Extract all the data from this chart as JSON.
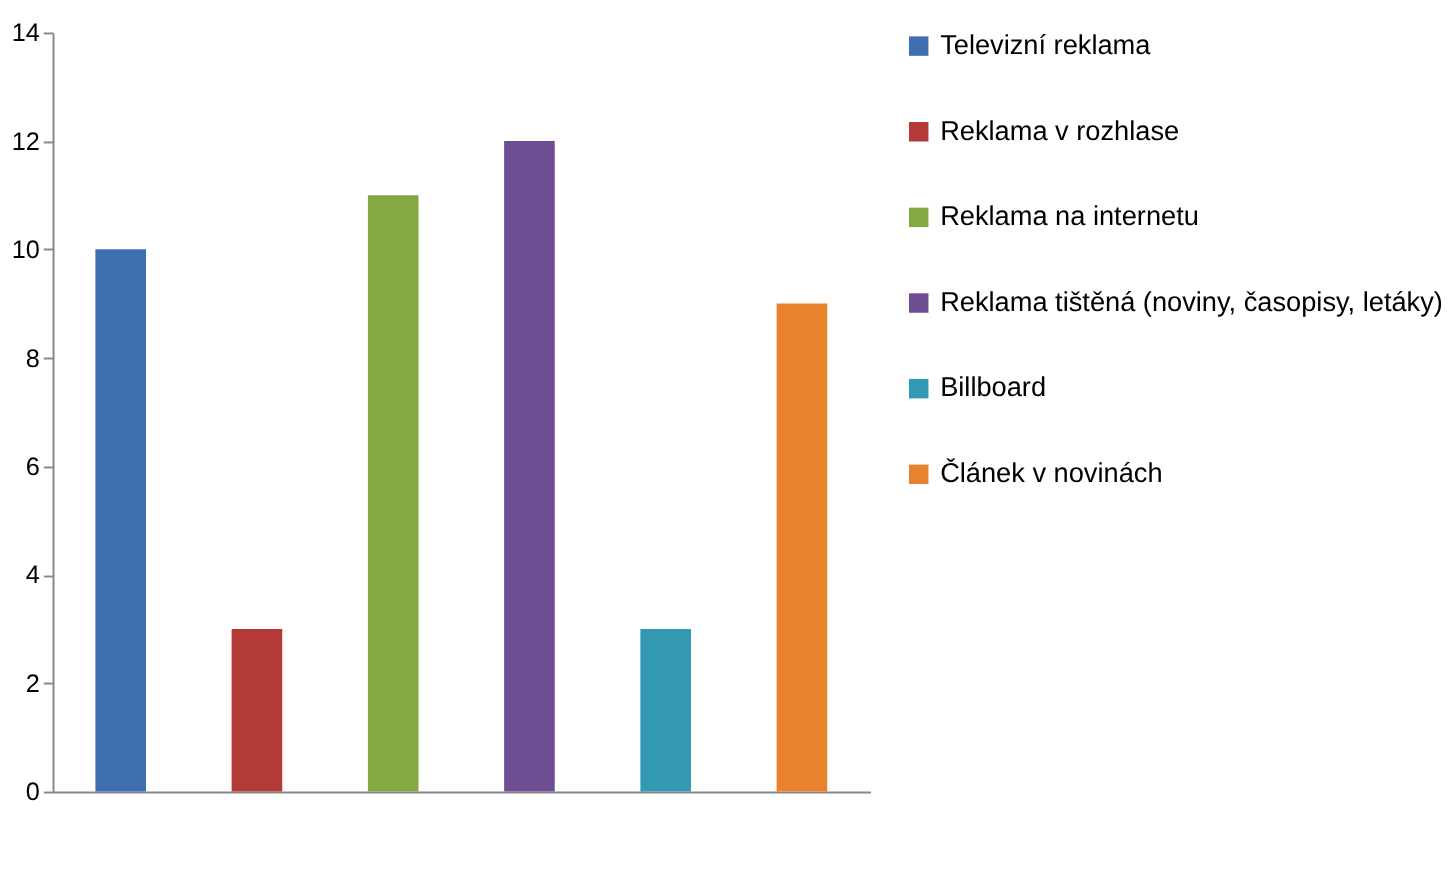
{
  "chart_data": {
    "type": "bar",
    "categories": [
      null,
      null,
      null,
      null,
      null,
      null
    ],
    "series": [
      {
        "name": "Televizní reklama",
        "color": "#3f6fb0",
        "values": [
          10,
          null,
          null,
          null,
          null,
          null
        ]
      },
      {
        "name": "Reklama v rozhlase",
        "color": "#b33a37",
        "values": [
          null,
          3,
          null,
          null,
          null,
          null
        ]
      },
      {
        "name": "Reklama na internetu",
        "color": "#86a843",
        "values": [
          null,
          null,
          11,
          null,
          null,
          null
        ]
      },
      {
        "name": "Reklama tištěná (noviny, časopisy, letáky)",
        "color": "#6e4e93",
        "values": [
          null,
          null,
          null,
          12,
          null,
          null
        ]
      },
      {
        "name": "Billboard",
        "color": "#3399b3",
        "values": [
          null,
          null,
          null,
          null,
          3,
          null
        ]
      },
      {
        "name": "Článek v novinách",
        "color": "#e9822d",
        "values": [
          null,
          null,
          null,
          null,
          null,
          9
        ]
      }
    ],
    "ylim": [
      0,
      14
    ],
    "yticks": [
      0,
      2,
      4,
      6,
      8,
      10,
      12,
      14
    ],
    "grid": false,
    "legend": "right"
  }
}
